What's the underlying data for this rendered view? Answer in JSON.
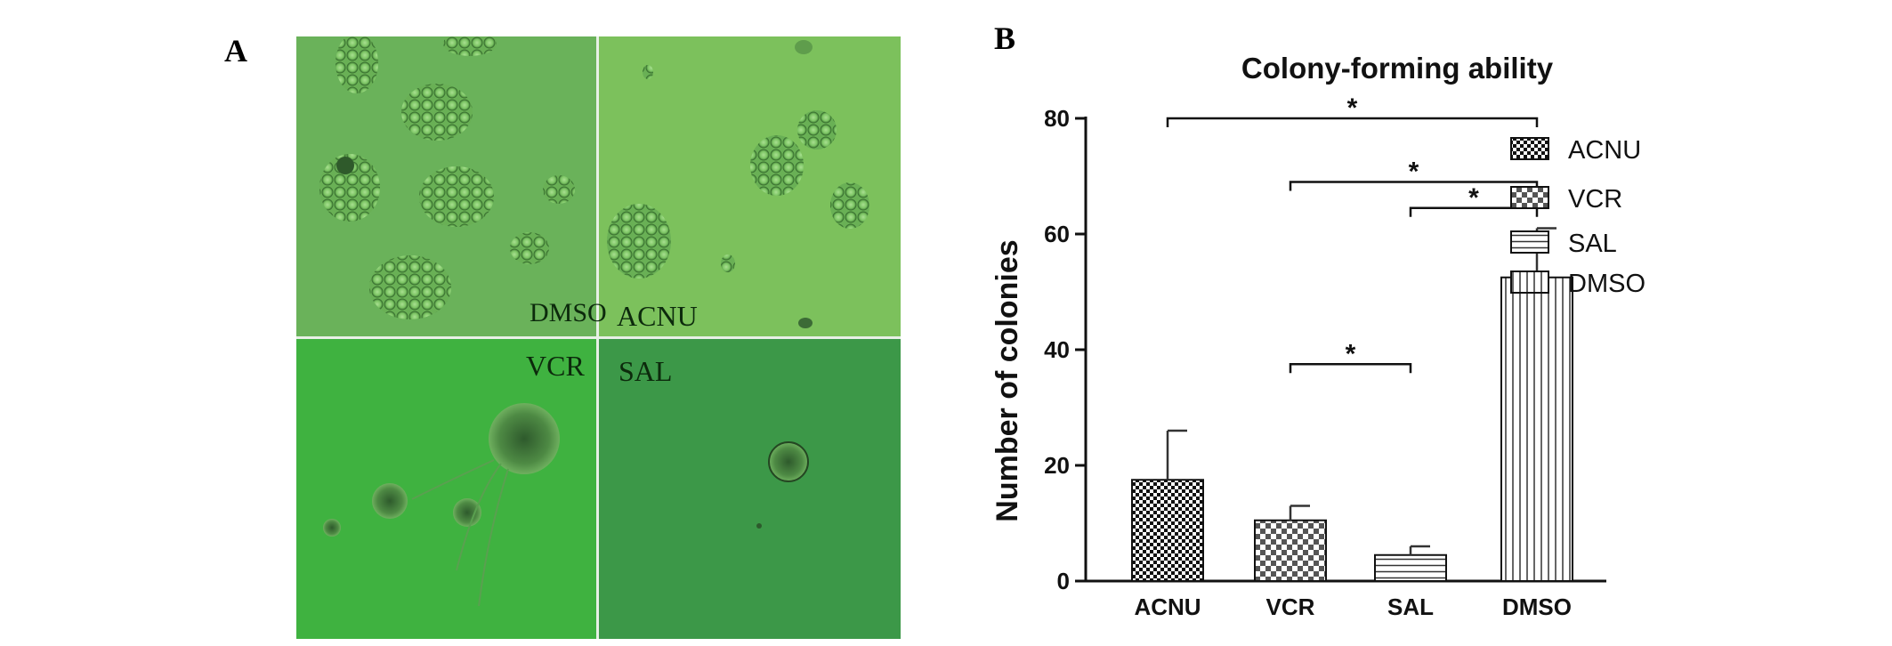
{
  "panels": {
    "a_label": "A",
    "b_label": "B",
    "micrographs": [
      {
        "label": "DMSO"
      },
      {
        "label": "ACNU"
      },
      {
        "label": "VCR"
      },
      {
        "label": "SAL"
      }
    ]
  },
  "chart_data": {
    "type": "bar",
    "title": "Colony-forming ability",
    "xlabel": "",
    "ylabel": "Number of colonies",
    "categories": [
      "ACNU",
      "VCR",
      "SAL",
      "DMSO"
    ],
    "values": [
      17.5,
      10.5,
      4.5,
      52.5
    ],
    "errors": [
      8.5,
      2.5,
      1.5,
      8.5
    ],
    "ylim": [
      0,
      80
    ],
    "yticks": [
      0,
      20,
      40,
      60,
      80
    ],
    "legend": {
      "placement": "right",
      "entries": [
        "ACNU",
        "VCR",
        "SAL",
        "DMSO"
      ]
    },
    "patterns": [
      "dense-checker",
      "checker",
      "horizontal-lines",
      "vertical-lines"
    ],
    "significance": [
      {
        "from": "ACNU",
        "to": "DMSO",
        "y": 80,
        "label": "*"
      },
      {
        "from": "VCR",
        "to": "DMSO",
        "y": 69,
        "label": "*"
      },
      {
        "from": "SAL",
        "to": "DMSO",
        "y": 64.5,
        "label": "*"
      },
      {
        "from": "VCR",
        "to": "SAL",
        "y": 37.5,
        "label": "*"
      }
    ],
    "grid": false
  }
}
